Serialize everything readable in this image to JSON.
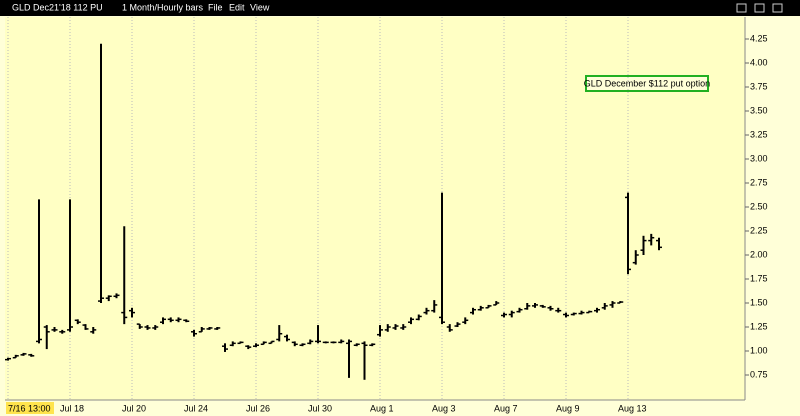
{
  "toolbar": {
    "symbol": "GLD Dec21'18 112 PU",
    "period": "1 Month/Hourly bars",
    "menus": [
      "File",
      "Edit",
      "View"
    ]
  },
  "chart_data": {
    "type": "ohlc",
    "color": "#000000",
    "grid": true,
    "annotation": "GLD December $112 put option",
    "categories": [
      "7/16 13:00",
      null,
      null,
      null,
      null,
      null,
      null,
      null,
      "Jul 18",
      null,
      null,
      null,
      null,
      null,
      null,
      null,
      "Jul 20",
      null,
      null,
      null,
      null,
      null,
      null,
      null,
      "Jul 24",
      null,
      null,
      null,
      null,
      null,
      null,
      null,
      "Jul 26",
      null,
      null,
      null,
      null,
      null,
      null,
      null,
      "Jul 30",
      null,
      null,
      null,
      null,
      null,
      null,
      null,
      "Aug 1",
      null,
      null,
      null,
      null,
      null,
      null,
      null,
      "Aug 3",
      null,
      null,
      null,
      null,
      null,
      null,
      null,
      "Aug 7",
      null,
      null,
      null,
      null,
      null,
      null,
      null,
      "Aug 9",
      null,
      null,
      null,
      null,
      null,
      null,
      null,
      "Aug 13",
      null,
      null,
      null,
      null
    ],
    "open": [
      0.91,
      0.93,
      0.96,
      0.96,
      1.1,
      1.25,
      1.22,
      1.2,
      1.22,
      1.32,
      1.27,
      1.2,
      1.52,
      1.55,
      1.57,
      1.4,
      1.42,
      1.28,
      1.25,
      1.24,
      1.3,
      1.33,
      1.32,
      1.32,
      1.2,
      1.2,
      1.23,
      1.23,
      1.05,
      1.06,
      1.08,
      1.05,
      1.05,
      1.07,
      1.08,
      1.12,
      1.15,
      1.09,
      1.06,
      1.08,
      1.1,
      1.09,
      1.09,
      1.09,
      1.08,
      1.06,
      1.08,
      1.06,
      1.17,
      1.22,
      1.24,
      1.24,
      1.3,
      1.33,
      1.4,
      1.42,
      1.35,
      1.25,
      1.26,
      1.3,
      1.4,
      1.43,
      1.45,
      1.48,
      1.37,
      1.38,
      1.41,
      1.44,
      1.47,
      1.47,
      1.45,
      1.42,
      1.38,
      1.38,
      1.39,
      1.4,
      1.42,
      1.45,
      1.48,
      1.5,
      2.6,
      1.92,
      2.05,
      2.15,
      2.15
    ],
    "high": [
      0.93,
      0.96,
      0.98,
      0.97,
      2.58,
      1.27,
      1.25,
      1.22,
      2.58,
      1.33,
      1.28,
      1.25,
      4.2,
      1.58,
      1.6,
      2.3,
      1.45,
      1.28,
      1.27,
      1.27,
      1.35,
      1.35,
      1.35,
      1.33,
      1.22,
      1.25,
      1.25,
      1.25,
      1.08,
      1.1,
      1.1,
      1.06,
      1.08,
      1.1,
      1.1,
      1.27,
      1.17,
      1.1,
      1.08,
      1.12,
      1.27,
      1.1,
      1.1,
      1.12,
      1.12,
      1.08,
      1.1,
      1.08,
      1.27,
      1.28,
      1.28,
      1.28,
      1.35,
      1.38,
      1.45,
      1.53,
      2.65,
      1.28,
      1.3,
      1.35,
      1.45,
      1.47,
      1.48,
      1.52,
      1.4,
      1.42,
      1.45,
      1.5,
      1.5,
      1.48,
      1.47,
      1.45,
      1.4,
      1.4,
      1.42,
      1.42,
      1.45,
      1.5,
      1.52,
      1.52,
      2.65,
      2.05,
      2.2,
      2.22,
      2.18
    ],
    "low": [
      0.9,
      0.93,
      0.95,
      0.94,
      1.08,
      1.02,
      1.2,
      1.18,
      1.2,
      1.28,
      1.22,
      1.18,
      1.5,
      1.52,
      1.55,
      1.28,
      1.35,
      1.23,
      1.22,
      1.22,
      1.28,
      1.3,
      1.3,
      1.3,
      1.15,
      1.2,
      1.22,
      1.22,
      0.99,
      1.05,
      1.08,
      1.02,
      1.04,
      1.07,
      1.08,
      1.1,
      1.1,
      1.05,
      1.05,
      1.07,
      1.08,
      1.08,
      1.08,
      1.08,
      0.72,
      1.05,
      0.7,
      1.05,
      1.15,
      1.2,
      1.22,
      1.22,
      1.28,
      1.32,
      1.38,
      1.4,
      1.28,
      1.2,
      1.25,
      1.28,
      1.38,
      1.42,
      1.45,
      1.48,
      1.35,
      1.35,
      1.4,
      1.43,
      1.45,
      1.45,
      1.42,
      1.4,
      1.35,
      1.37,
      1.38,
      1.4,
      1.4,
      1.43,
      1.45,
      1.5,
      1.8,
      1.9,
      2.0,
      2.1,
      2.05
    ],
    "close": [
      0.92,
      0.95,
      0.97,
      0.95,
      1.12,
      1.2,
      1.22,
      1.2,
      1.25,
      1.3,
      1.23,
      1.22,
      1.55,
      1.57,
      1.58,
      1.35,
      1.4,
      1.25,
      1.24,
      1.25,
      1.33,
      1.32,
      1.33,
      1.31,
      1.18,
      1.23,
      1.24,
      1.24,
      1.02,
      1.08,
      1.09,
      1.04,
      1.06,
      1.09,
      1.1,
      1.18,
      1.12,
      1.07,
      1.07,
      1.1,
      1.1,
      1.09,
      1.09,
      1.1,
      1.1,
      1.07,
      1.06,
      1.07,
      1.22,
      1.25,
      1.26,
      1.25,
      1.33,
      1.36,
      1.42,
      1.48,
      1.3,
      1.22,
      1.28,
      1.32,
      1.43,
      1.45,
      1.47,
      1.5,
      1.38,
      1.4,
      1.43,
      1.47,
      1.48,
      1.46,
      1.44,
      1.42,
      1.37,
      1.39,
      1.4,
      1.41,
      1.43,
      1.47,
      1.5,
      1.51,
      1.85,
      2.0,
      2.15,
      2.18,
      2.08
    ],
    "ylim": [
      0.5,
      4.5
    ],
    "yticks": [
      0.75,
      {
        "value": 1,
        "label": "1.00"
      },
      1.25,
      {
        "value": 1.5,
        "label": "1.50"
      },
      1.75,
      {
        "value": 2,
        "label": "2.00"
      },
      2.25,
      {
        "value": 2.5,
        "label": "2.50"
      },
      2.75,
      {
        "value": 3,
        "label": "3.00"
      },
      3.25,
      {
        "value": 3.5,
        "label": "3.50"
      },
      3.75,
      {
        "value": 4,
        "label": "4.00"
      },
      4.25
    ]
  }
}
